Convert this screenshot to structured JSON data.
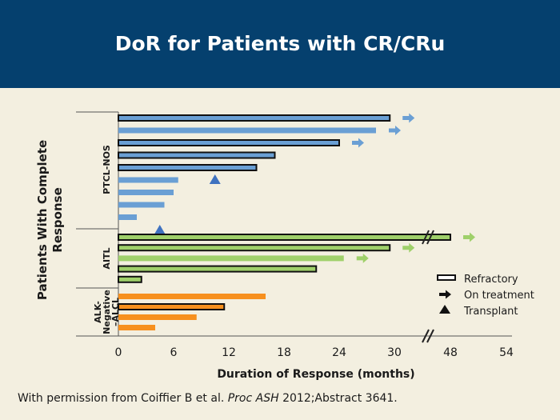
{
  "title": "DoR for Patients with CR/CRu",
  "credit": {
    "prefix": "With permission from Coiffier B et al. ",
    "source": "Proc ASH",
    "suffix": " 2012;Abstract 3641."
  },
  "colors": {
    "header": "#05406e",
    "background": "#f3efe0",
    "ptcl": "#6a9fd4",
    "aitl": "#9fd06a",
    "alk": "#f7901e",
    "transplant": "#3f72c0"
  },
  "chart_data": {
    "type": "bar",
    "orientation": "horizontal",
    "xlabel": "Duration of Response (months)",
    "ylabel": "Patients With Complete Response",
    "x_ticks": [
      "0",
      "6",
      "12",
      "18",
      "24",
      "30",
      "48",
      "54"
    ],
    "axis_break": "between 30 and 48",
    "groups": [
      {
        "name": "PTCL-NOS",
        "color": "#6a9fd4",
        "bars": [
          {
            "value": 29.5,
            "refractory": true,
            "on_treatment": true
          },
          {
            "value": 28.0,
            "refractory": false,
            "on_treatment": true
          },
          {
            "value": 24.0,
            "refractory": true,
            "on_treatment": true
          },
          {
            "value": 17.0,
            "refractory": true,
            "on_treatment": false
          },
          {
            "value": 15.0,
            "refractory": true,
            "on_treatment": false
          },
          {
            "value": 6.5,
            "refractory": false,
            "on_treatment": false,
            "transplant": 10.5
          },
          {
            "value": 6.0,
            "refractory": false,
            "on_treatment": false
          },
          {
            "value": 5.0,
            "refractory": false,
            "on_treatment": false
          },
          {
            "value": 2.0,
            "refractory": false,
            "on_treatment": false,
            "transplant_below": 4.5
          }
        ]
      },
      {
        "name": "AITL",
        "color": "#9fd06a",
        "bars": [
          {
            "value": 48.0,
            "refractory": true,
            "on_treatment": true
          },
          {
            "value": 29.5,
            "refractory": true,
            "on_treatment": true
          },
          {
            "value": 24.5,
            "refractory": false,
            "on_treatment": true
          },
          {
            "value": 21.5,
            "refractory": true,
            "on_treatment": false
          },
          {
            "value": 2.5,
            "refractory": true,
            "on_treatment": false
          }
        ]
      },
      {
        "name": "ALK-Negative –ALCL",
        "name_lines": [
          "ALK-",
          "Negative",
          "–ALCL"
        ],
        "color": "#f7901e",
        "bars": [
          {
            "value": 16.0,
            "refractory": false,
            "on_treatment": false
          },
          {
            "value": 11.5,
            "refractory": true,
            "on_treatment": false
          },
          {
            "value": 8.5,
            "refractory": false,
            "on_treatment": false
          },
          {
            "value": 4.0,
            "refractory": false,
            "on_treatment": false
          }
        ]
      }
    ],
    "legend": {
      "placement": "right",
      "items": [
        {
          "label": "Refractory",
          "symbol": "outlined-bar"
        },
        {
          "label": "On treatment",
          "symbol": "arrow"
        },
        {
          "label": "Transplant",
          "symbol": "triangle"
        }
      ]
    }
  }
}
